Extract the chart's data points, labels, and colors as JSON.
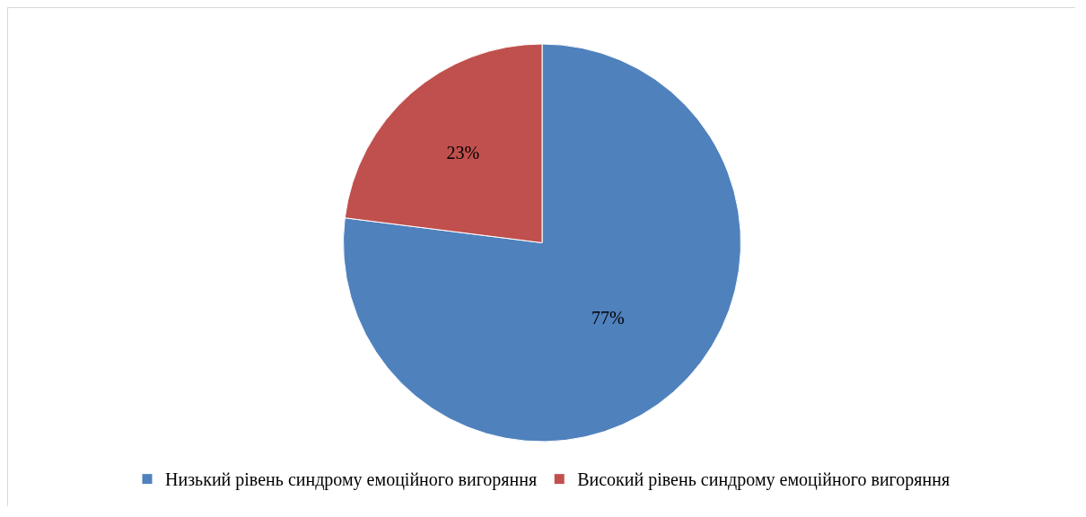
{
  "chart_data": {
    "type": "pie",
    "categories": [
      "Низький рівень синдрому емоційного вигоряння",
      "Високий рівень синдрому емоційного вигоряння"
    ],
    "values": [
      77,
      23
    ],
    "colors": [
      "#4f81bd",
      "#c0504d"
    ],
    "value_labels": [
      "77%",
      "23%"
    ],
    "legend": "bottom"
  }
}
